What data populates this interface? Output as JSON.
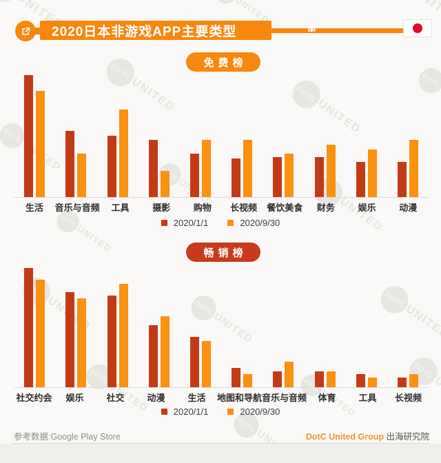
{
  "header": {
    "title": "2020日本非游戏APP主要类型",
    "chevrons": "»»"
  },
  "colors": {
    "accent_orange": "#f8870e",
    "bar_red": "#c33b16",
    "bar_orange": "#fa9110",
    "badge_grossing_red": "#c93a1b",
    "flag_red": "#d80b2f",
    "background": "#faf9f7"
  },
  "chart_data": [
    {
      "type": "bar",
      "title": "免费榜",
      "categories": [
        "生活",
        "音乐与音频",
        "工具",
        "摄影",
        "购物",
        "长视频",
        "餐饮美食",
        "财务",
        "娱乐",
        "动漫"
      ],
      "series": [
        {
          "name": "2020/1/1",
          "color": "#c33b16",
          "values": [
            98,
            53,
            49,
            46,
            35,
            31,
            32,
            32,
            28,
            28
          ]
        },
        {
          "name": "2020/9/30",
          "color": "#fa9110",
          "values": [
            85,
            35,
            70,
            21,
            46,
            46,
            35,
            42,
            38,
            46
          ]
        }
      ],
      "xlabel": "",
      "ylabel": "",
      "axis_note": "no numeric y-axis shown; values are relative bar heights in % of plot height",
      "legend_position": "bottom",
      "grid": false
    },
    {
      "type": "bar",
      "title": "畅销榜",
      "categories": [
        "社交约会",
        "娱乐",
        "社交",
        "动漫",
        "生活",
        "地图和导航",
        "音乐与音频",
        "体育",
        "工具",
        "长视频"
      ],
      "series": [
        {
          "name": "2020/1/1",
          "color": "#c33b16",
          "values": [
            98,
            78,
            75,
            51,
            41,
            16,
            13,
            13,
            11,
            8
          ]
        },
        {
          "name": "2020/9/30",
          "color": "#fa9110",
          "values": [
            88,
            73,
            85,
            58,
            38,
            11,
            21,
            13,
            8,
            11
          ]
        }
      ],
      "xlabel": "",
      "ylabel": "",
      "axis_note": "no numeric y-axis shown; values are relative bar heights in % of plot height",
      "legend_position": "bottom",
      "grid": false
    }
  ],
  "watermark": {
    "circle_text": "DOTC",
    "tail_text": "UNITED"
  },
  "footer": {
    "source": "参考数据:Google Play Store",
    "brand": "DotC United Group",
    "org": "出海研究院"
  }
}
